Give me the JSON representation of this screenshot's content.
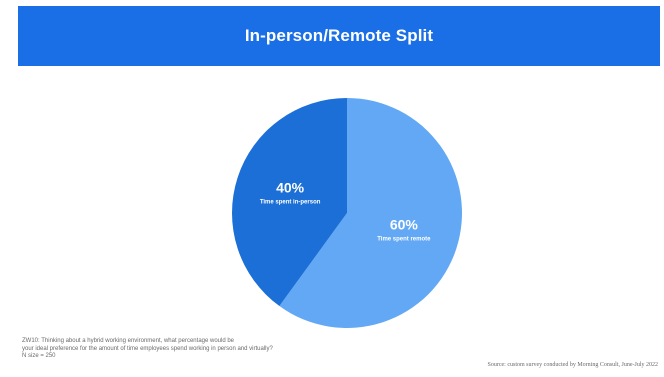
{
  "header": {
    "title": "In-person/Remote Split"
  },
  "chart_data": {
    "type": "pie",
    "title": "In-person/Remote Split",
    "slices": [
      {
        "label": "Time spent remote",
        "value": 60,
        "display": "60%",
        "color": "#62a8f5"
      },
      {
        "label": "Time spent in-person",
        "value": 40,
        "display": "40%",
        "color": "#1b6fd6"
      }
    ],
    "start_angle_deg": 0,
    "direction": "clockwise"
  },
  "footnote": {
    "line1": "ZW10: Thinking about a hybrid working environment, what percentage would be",
    "line2": "your ideal preference for the amount of time employees spend working in person and virtually?",
    "line3": "N size = 250"
  },
  "source": {
    "text": "Source: custom survey conducted by Morning Consult, June-July 2022"
  },
  "colors": {
    "header_bg": "#1b6fe6",
    "remote": "#62a8f5",
    "in_person": "#1b6fd6"
  }
}
